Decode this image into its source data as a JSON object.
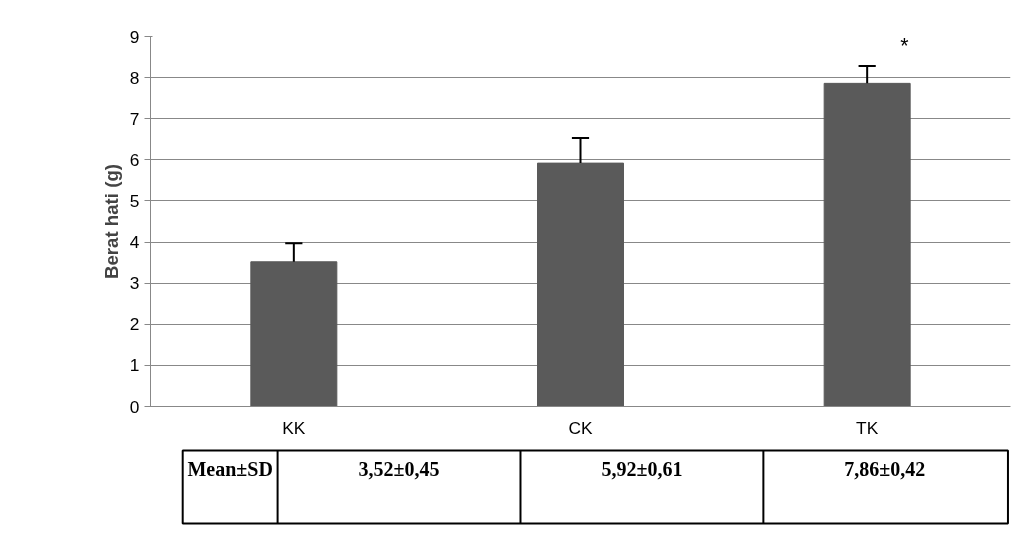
{
  "chart_data": {
    "type": "bar",
    "ylabel": "Berat hati (g)",
    "categories": [
      "KK",
      "CK",
      "TK"
    ],
    "values": [
      3.52,
      5.92,
      7.86
    ],
    "errors": [
      [
        3.52,
        3.97
      ],
      [
        5.92,
        6.53
      ],
      [
        7.86,
        8.28
      ]
    ],
    "color": "#5a5a5a",
    "value_labels": [
      "3,52±0,45",
      "5,92±0,61",
      "7,86±0,42"
    ],
    "annotations": [
      "Mean±SD",
      "*"
    ],
    "ylim": [
      0,
      9
    ],
    "yticks": [
      0,
      1,
      2,
      3,
      4,
      5,
      6,
      7,
      8,
      9
    ],
    "grid": "y"
  }
}
